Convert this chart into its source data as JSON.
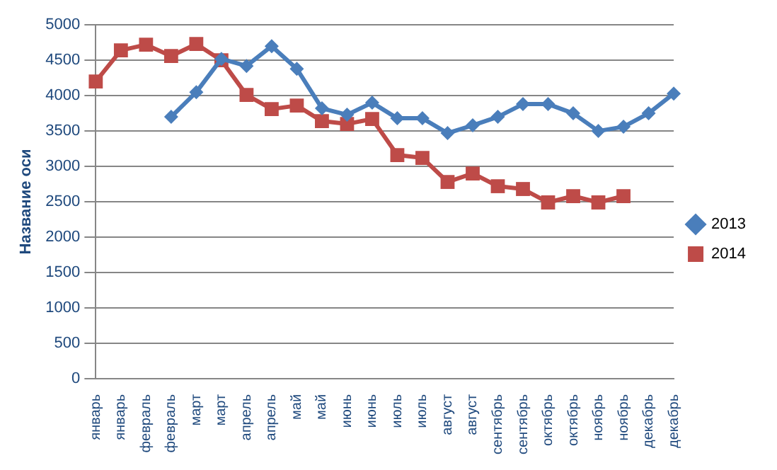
{
  "chart_data": {
    "type": "line",
    "ylabel": "Название оси",
    "categories": [
      "январь",
      "январь",
      "февраль",
      "февраль",
      "март",
      "март",
      "апрель",
      "апрель",
      "май",
      "май",
      "июнь",
      "июнь",
      "июль",
      "июль",
      "август",
      "август",
      "сентябрь",
      "сентябрь",
      "октябрь",
      "октябрь",
      "ноябрь",
      "ноябрь",
      "декабрь",
      "декабрь"
    ],
    "series": [
      {
        "name": "2013",
        "color": "#4a7ebb",
        "marker": "diamond",
        "values": [
          null,
          null,
          null,
          3700,
          4050,
          4520,
          4420,
          4700,
          4380,
          3820,
          3730,
          3900,
          3680,
          3680,
          3470,
          3580,
          3700,
          3880,
          3880,
          3750,
          3500,
          3560,
          3750,
          4030
        ]
      },
      {
        "name": "2014",
        "color": "#be4b48",
        "marker": "square",
        "values": [
          4200,
          4640,
          4720,
          4560,
          4730,
          4500,
          4010,
          3810,
          3860,
          3640,
          3600,
          3670,
          3160,
          3120,
          2780,
          2900,
          2720,
          2680,
          2490,
          2580,
          2490,
          2580,
          null,
          null
        ]
      }
    ],
    "ylim": [
      0,
      5000
    ],
    "yticks": [
      0,
      500,
      1000,
      1500,
      2000,
      2500,
      3000,
      3500,
      4000,
      4500,
      5000
    ],
    "grid": "y",
    "legend": "right"
  }
}
